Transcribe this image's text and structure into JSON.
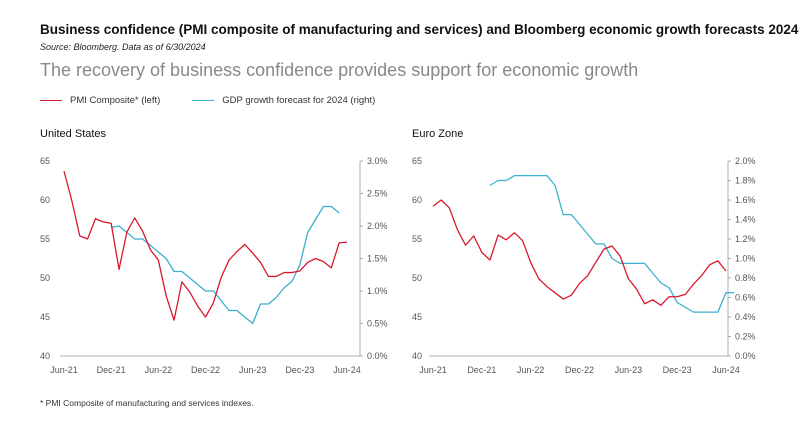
{
  "header": {
    "title": "Business confidence (PMI composite of manufacturing and services) and Bloomberg economic growth forecasts 2024",
    "source": "Source: Bloomberg. Data as of 6/30/2024",
    "subtitle": "The recovery of business confidence provides support for economic growth"
  },
  "legend": {
    "pmi": "PMI Composite* (left)",
    "gdp": "GDP growth forecast for 2024 (right)"
  },
  "footnote": "* PMI Composite of manufacturing and services indexes.",
  "colors": {
    "pmi": "#d7192d",
    "gdp": "#3ab0cf",
    "axis": "#999999"
  },
  "chart_data": [
    {
      "type": "line",
      "title": "United States",
      "x_tick_labels": [
        "Jun-21",
        "Dec-21",
        "Jun-22",
        "Dec-22",
        "Jun-23",
        "Dec-23",
        "Jun-24"
      ],
      "x_months": [
        "2021-06",
        "2021-07",
        "2021-08",
        "2021-09",
        "2021-10",
        "2021-11",
        "2021-12",
        "2022-01",
        "2022-02",
        "2022-03",
        "2022-04",
        "2022-05",
        "2022-06",
        "2022-07",
        "2022-08",
        "2022-09",
        "2022-10",
        "2022-11",
        "2022-12",
        "2023-01",
        "2023-02",
        "2023-03",
        "2023-04",
        "2023-05",
        "2023-06",
        "2023-07",
        "2023-08",
        "2023-09",
        "2023-10",
        "2023-11",
        "2023-12",
        "2024-01",
        "2024-02",
        "2024-03",
        "2024-04",
        "2024-05",
        "2024-06"
      ],
      "y_left": {
        "ticks": [
          "65",
          "60",
          "55",
          "50",
          "45",
          "40"
        ],
        "range": [
          40,
          65
        ]
      },
      "y_right": {
        "ticks": [
          "3.0%",
          "2.5%",
          "2.0%",
          "1.5%",
          "1.0%",
          "0.5%",
          "0.0%"
        ],
        "range": [
          0,
          3
        ]
      },
      "series": [
        {
          "name": "PMI Composite* (left)",
          "axis": "left",
          "start_index": 0,
          "values": [
            63.7,
            59.9,
            55.4,
            55.0,
            57.6,
            57.2,
            57.0,
            51.1,
            55.9,
            57.7,
            56.0,
            53.6,
            52.3,
            47.7,
            44.6,
            49.5,
            48.2,
            46.4,
            45.0,
            46.8,
            50.1,
            52.3,
            53.4,
            54.3,
            53.2,
            52.0,
            50.2,
            50.2,
            50.7,
            50.7,
            50.9,
            52.0,
            52.5,
            52.1,
            51.3,
            54.5,
            54.6
          ]
        },
        {
          "name": "GDP growth forecast for 2024 (right)",
          "axis": "right",
          "start_index": 6,
          "values": [
            1.98,
            2.0,
            1.9,
            1.8,
            1.8,
            1.7,
            1.6,
            1.5,
            1.3,
            1.3,
            1.2,
            1.1,
            1.0,
            1.0,
            0.85,
            0.7,
            0.7,
            0.6,
            0.5,
            0.8,
            0.8,
            0.9,
            1.05,
            1.15,
            1.4,
            1.9,
            2.1,
            2.3,
            2.3,
            2.2
          ]
        }
      ]
    },
    {
      "type": "line",
      "title": "Euro Zone",
      "x_tick_labels": [
        "Jun-21",
        "Dec-21",
        "Jun-22",
        "Dec-22",
        "Jun-23",
        "Dec-23",
        "Jun-24"
      ],
      "x_months": [
        "2021-06",
        "2021-07",
        "2021-08",
        "2021-09",
        "2021-10",
        "2021-11",
        "2021-12",
        "2022-01",
        "2022-02",
        "2022-03",
        "2022-04",
        "2022-05",
        "2022-06",
        "2022-07",
        "2022-08",
        "2022-09",
        "2022-10",
        "2022-11",
        "2022-12",
        "2023-01",
        "2023-02",
        "2023-03",
        "2023-04",
        "2023-05",
        "2023-06",
        "2023-07",
        "2023-08",
        "2023-09",
        "2023-10",
        "2023-11",
        "2023-12",
        "2024-01",
        "2024-02",
        "2024-03",
        "2024-04",
        "2024-05",
        "2024-06"
      ],
      "y_left": {
        "ticks": [
          "65",
          "60",
          "55",
          "50",
          "45",
          "40"
        ],
        "range": [
          40,
          65
        ]
      },
      "y_right": {
        "ticks": [
          "2.0%",
          "1.8%",
          "1.6%",
          "1.4%",
          "1.2%",
          "1.0%",
          "0.8%",
          "0.6%",
          "0.4%",
          "0.2%",
          "0.0%"
        ],
        "range": [
          0,
          2
        ]
      },
      "series": [
        {
          "name": "PMI Composite* (left)",
          "axis": "left",
          "start_index": 0,
          "values": [
            59.2,
            60.0,
            59.0,
            56.2,
            54.2,
            55.4,
            53.3,
            52.3,
            55.5,
            54.9,
            55.8,
            54.8,
            52.0,
            49.9,
            48.9,
            48.1,
            47.3,
            47.8,
            49.3,
            50.3,
            52.0,
            53.7,
            54.1,
            52.8,
            49.9,
            48.6,
            46.7,
            47.2,
            46.5,
            47.6,
            47.6,
            47.9,
            49.2,
            50.3,
            51.7,
            52.2,
            50.9
          ]
        },
        {
          "name": "GDP growth forecast for 2024 (right)",
          "axis": "right",
          "start_index": 7,
          "values": [
            1.75,
            1.8,
            1.8,
            1.85,
            1.85,
            1.85,
            1.85,
            1.85,
            1.75,
            1.45,
            1.45,
            1.35,
            1.25,
            1.15,
            1.15,
            1.0,
            0.95,
            0.95,
            0.95,
            0.95,
            0.85,
            0.75,
            0.7,
            0.55,
            0.5,
            0.45,
            0.45,
            0.45,
            0.45,
            0.65,
            0.65
          ]
        }
      ]
    }
  ]
}
